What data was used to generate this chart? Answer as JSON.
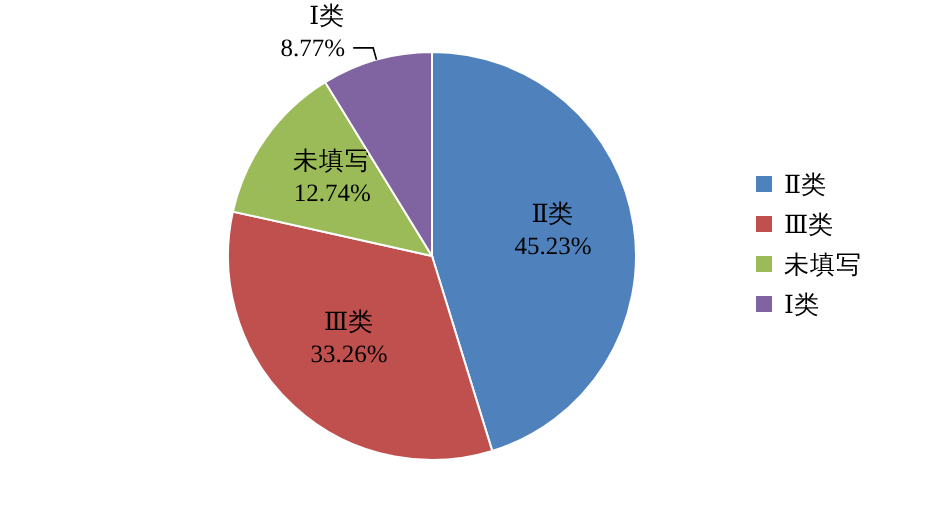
{
  "chart_data": {
    "type": "pie",
    "categories": [
      "Ⅱ类",
      "Ⅲ类",
      "未填写",
      "Ⅰ类"
    ],
    "values": [
      45.23,
      33.26,
      12.74,
      8.77
    ],
    "colors": [
      "#4f81bd",
      "#c0504d",
      "#9bbb59",
      "#8064a2"
    ],
    "value_labels": [
      "45.23%",
      "33.26%",
      "12.74%",
      "8.77%"
    ],
    "legend": "right"
  }
}
